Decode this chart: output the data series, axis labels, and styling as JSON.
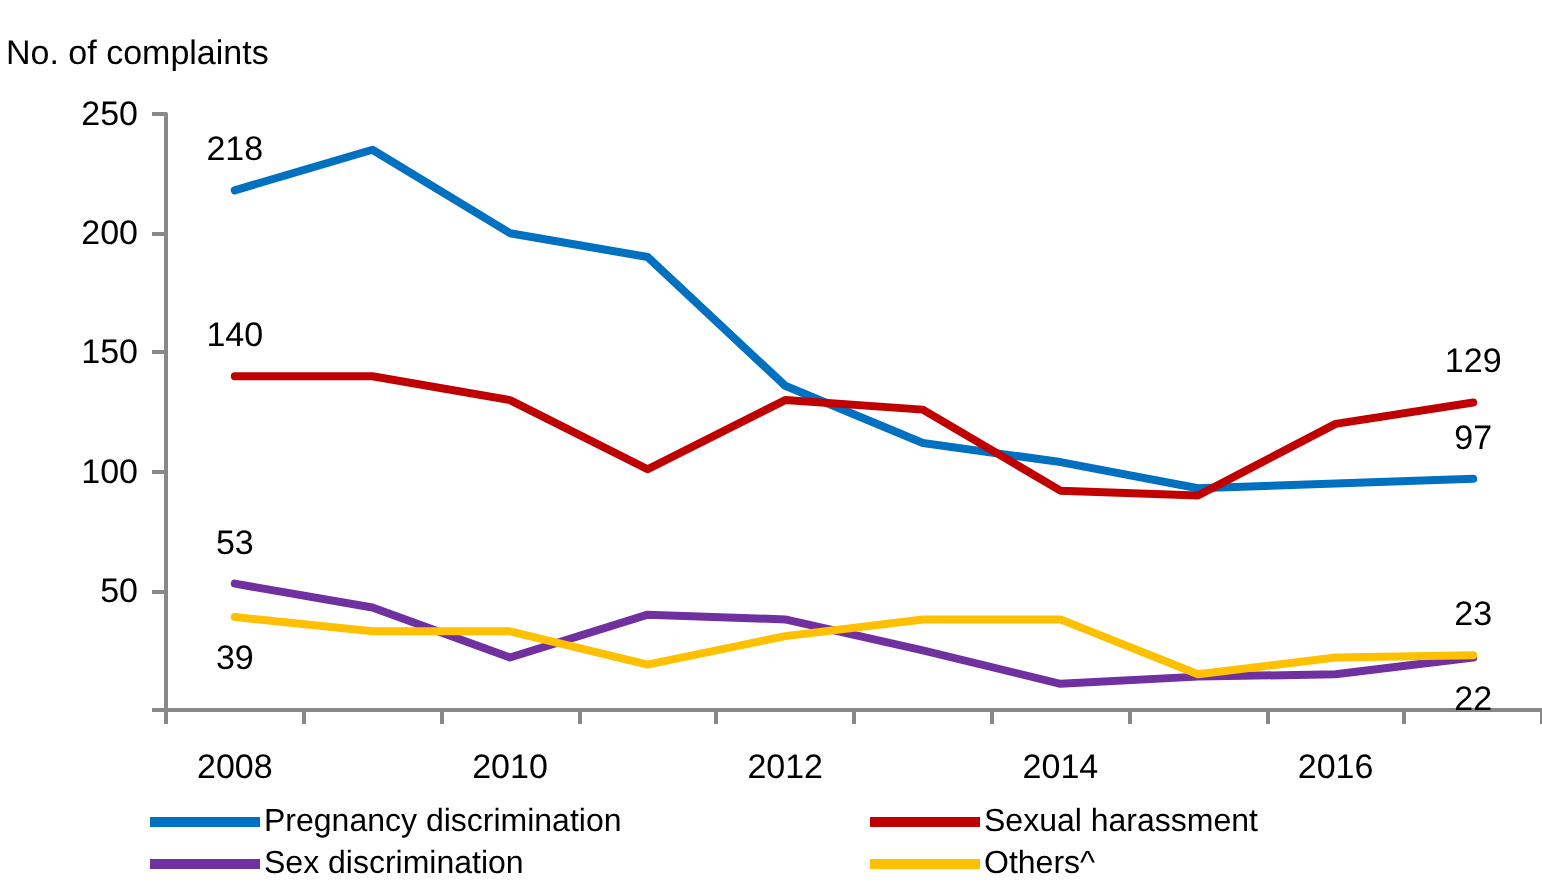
{
  "chart_data": {
    "type": "line",
    "ylabel": "No. of complaints",
    "categories": [
      "2008",
      null,
      "2010",
      null,
      "2012",
      null,
      "2014",
      null,
      "2016",
      null
    ],
    "series": [
      {
        "name": "Pregnancy discrimination",
        "color": "#0070c0",
        "values": [
          218,
          235,
          200,
          190,
          136,
          112,
          104,
          93,
          95,
          97
        ],
        "value_labels": [
          "218",
          null,
          null,
          null,
          null,
          null,
          null,
          null,
          null,
          "97"
        ]
      },
      {
        "name": "Sexual harassment",
        "color": "#c00000",
        "values": [
          140,
          140,
          130,
          101,
          130,
          126,
          92,
          90,
          120,
          129
        ],
        "value_labels": [
          "140",
          null,
          null,
          null,
          null,
          null,
          null,
          null,
          null,
          "129"
        ]
      },
      {
        "name": "Sex discrimination",
        "color": "#7030a0",
        "values": [
          53,
          43,
          22,
          40,
          38,
          25,
          11,
          14,
          15,
          22
        ],
        "value_labels": [
          "53",
          null,
          null,
          null,
          null,
          null,
          null,
          null,
          null,
          "22"
        ]
      },
      {
        "name": "Others^",
        "color": "#ffc000",
        "values": [
          39,
          33,
          33,
          19,
          31,
          38,
          38,
          15,
          22,
          23
        ],
        "value_labels": [
          "39",
          null,
          null,
          null,
          null,
          null,
          null,
          null,
          null,
          "23"
        ]
      }
    ],
    "ylim": [
      0,
      250
    ],
    "yticks": [
      {
        "value": 0,
        "label": null
      },
      50,
      100,
      150,
      200,
      250
    ],
    "grid": false,
    "legend": "bottom",
    "marker": "none",
    "line_style": "solid"
  }
}
